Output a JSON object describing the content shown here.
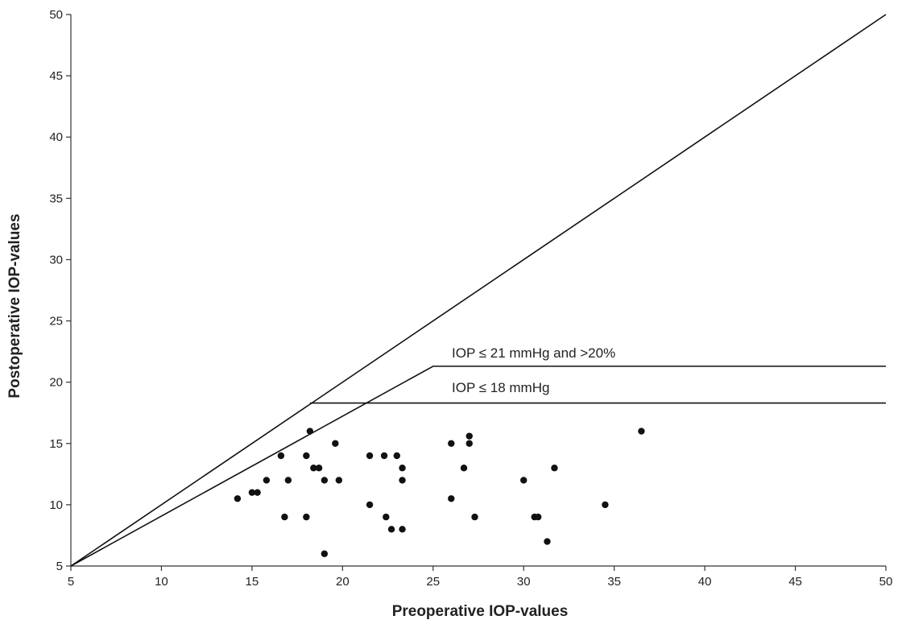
{
  "chart_data": {
    "type": "scatter",
    "xlabel": "Preoperative IOP-values",
    "ylabel": "Postoperative IOP-values",
    "xlim": [
      5,
      50
    ],
    "ylim": [
      5,
      50
    ],
    "xticks": [
      5,
      10,
      15,
      20,
      25,
      30,
      35,
      40,
      45,
      50
    ],
    "yticks": [
      5,
      10,
      15,
      20,
      25,
      30,
      35,
      40,
      45,
      50
    ],
    "grid": false,
    "colors": {
      "points": "#111111",
      "lines": "#111111",
      "axes": "#333333"
    },
    "points": [
      {
        "x": 14.2,
        "y": 10.5
      },
      {
        "x": 15.0,
        "y": 11.0
      },
      {
        "x": 15.3,
        "y": 11.0
      },
      {
        "x": 15.8,
        "y": 12.0
      },
      {
        "x": 16.6,
        "y": 14.0
      },
      {
        "x": 16.8,
        "y": 9.0
      },
      {
        "x": 17.0,
        "y": 12.0
      },
      {
        "x": 18.0,
        "y": 14.0
      },
      {
        "x": 18.0,
        "y": 9.0
      },
      {
        "x": 18.2,
        "y": 16.0
      },
      {
        "x": 18.4,
        "y": 13.0
      },
      {
        "x": 18.7,
        "y": 13.0
      },
      {
        "x": 19.0,
        "y": 12.0
      },
      {
        "x": 19.0,
        "y": 6.0
      },
      {
        "x": 19.6,
        "y": 15.0
      },
      {
        "x": 19.8,
        "y": 12.0
      },
      {
        "x": 21.5,
        "y": 14.0
      },
      {
        "x": 21.5,
        "y": 10.0
      },
      {
        "x": 22.3,
        "y": 14.0
      },
      {
        "x": 22.4,
        "y": 9.0
      },
      {
        "x": 22.7,
        "y": 8.0
      },
      {
        "x": 23.0,
        "y": 14.0
      },
      {
        "x": 23.3,
        "y": 13.0
      },
      {
        "x": 23.3,
        "y": 12.0
      },
      {
        "x": 23.3,
        "y": 8.0
      },
      {
        "x": 26.0,
        "y": 15.0
      },
      {
        "x": 26.0,
        "y": 10.5
      },
      {
        "x": 26.7,
        "y": 13.0
      },
      {
        "x": 27.0,
        "y": 15.6
      },
      {
        "x": 27.0,
        "y": 15.0
      },
      {
        "x": 27.3,
        "y": 9.0
      },
      {
        "x": 30.0,
        "y": 12.0
      },
      {
        "x": 30.6,
        "y": 9.0
      },
      {
        "x": 30.8,
        "y": 9.0
      },
      {
        "x": 31.3,
        "y": 7.0
      },
      {
        "x": 31.7,
        "y": 13.0
      },
      {
        "x": 34.5,
        "y": 10.0
      },
      {
        "x": 36.5,
        "y": 16.0
      }
    ],
    "reference_lines": [
      {
        "id": "identity",
        "points": [
          [
            5,
            5
          ],
          [
            50,
            50
          ]
        ]
      },
      {
        "id": "criterion-21-20pct",
        "label": "IOP ≤ 21 mmHg and >20%",
        "points": [
          [
            5,
            5
          ],
          [
            25,
            21.3
          ],
          [
            50,
            21.3
          ]
        ]
      },
      {
        "id": "criterion-18",
        "label": "IOP ≤ 18 mmHg",
        "points": [
          [
            18.2,
            18.3
          ],
          [
            50,
            18.3
          ]
        ]
      }
    ]
  }
}
